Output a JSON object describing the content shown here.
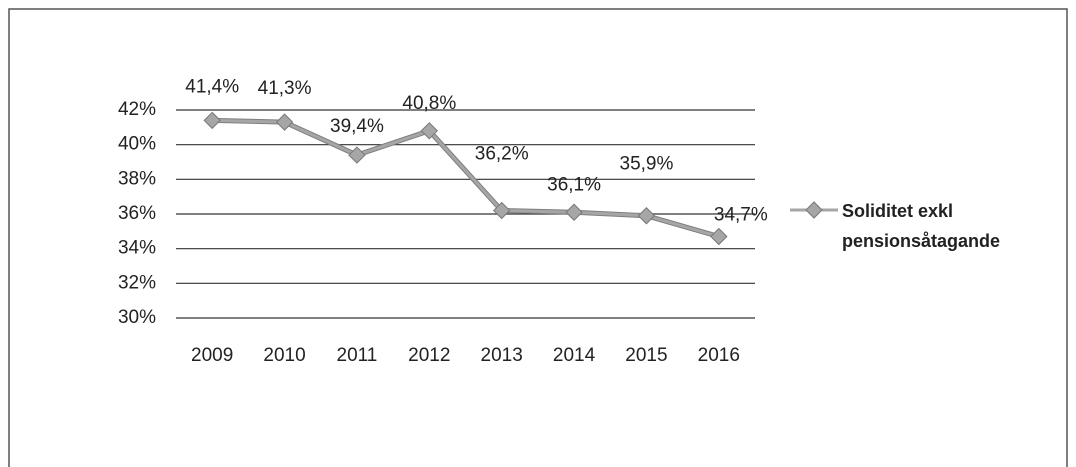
{
  "chart_data": {
    "type": "line",
    "categories": [
      "2009",
      "2010",
      "2011",
      "2012",
      "2013",
      "2014",
      "2015",
      "2016"
    ],
    "series": [
      {
        "name": "Soliditet exkl pensionsåtagande",
        "color": "#a6a6a6",
        "values": [
          41.4,
          41.3,
          39.4,
          40.8,
          36.2,
          36.1,
          35.9,
          34.7
        ],
        "value_labels": [
          "41,4%",
          "41,3%",
          "39,4%",
          "40,8%",
          "36,2%",
          "36,1%",
          "35,9%",
          "34,7%"
        ]
      }
    ],
    "ylim": [
      30,
      42
    ],
    "yticks": [
      {
        "value": 30,
        "label": "30%"
      },
      {
        "value": 32,
        "label": "32%"
      },
      {
        "value": 34,
        "label": "34%"
      },
      {
        "value": 36,
        "label": "36%"
      },
      {
        "value": 38,
        "label": "38%"
      },
      {
        "value": 40,
        "label": "40%"
      },
      {
        "value": 42,
        "label": "42%"
      }
    ],
    "grid": true,
    "legend": "right"
  }
}
